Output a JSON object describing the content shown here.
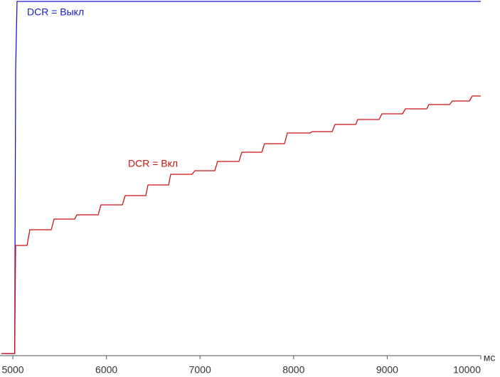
{
  "chart_data": {
    "type": "line",
    "x_label": "мс",
    "xlim": [
      4863,
      10000
    ],
    "xticks": [
      5000,
      6000,
      7000,
      8000,
      9000,
      10000
    ],
    "ylim": [
      0,
      100
    ],
    "series": [
      {
        "name": "DCR = Выкл",
        "color": "#1a1acc",
        "x": [
          4878,
          5020,
          5030,
          5045,
          10000
        ],
        "values": [
          0.6,
          0.6,
          80,
          99.6,
          99.6
        ]
      },
      {
        "name": "DCR = Вкл",
        "color": "#cc1111",
        "x": [
          4878,
          5020,
          5030,
          5152,
          5182,
          5410,
          5441,
          5661,
          5684,
          5912,
          5942,
          6170,
          6201,
          6421,
          6444,
          6664,
          6687,
          6915,
          6945,
          7158,
          7188,
          7416,
          7447,
          7660,
          7690,
          7903,
          7933,
          8176,
          8200,
          8412,
          8442,
          8663,
          8685,
          8913,
          8944,
          9164,
          9195,
          9422,
          9445,
          9666,
          9696,
          9878,
          9909,
          10000
        ],
        "values": [
          0.6,
          0.6,
          31,
          31,
          35.4,
          35.4,
          38.4,
          38.4,
          39.6,
          39.6,
          42.4,
          42.4,
          45,
          45,
          48,
          48,
          51,
          51,
          52,
          52,
          54.6,
          54.6,
          57.2,
          57.2,
          59.6,
          59.6,
          62.6,
          62.6,
          63,
          63,
          65,
          65,
          66.4,
          66.4,
          68,
          68,
          69.4,
          69.4,
          70.6,
          70.6,
          71.6,
          71.6,
          73,
          73
        ]
      }
    ]
  }
}
